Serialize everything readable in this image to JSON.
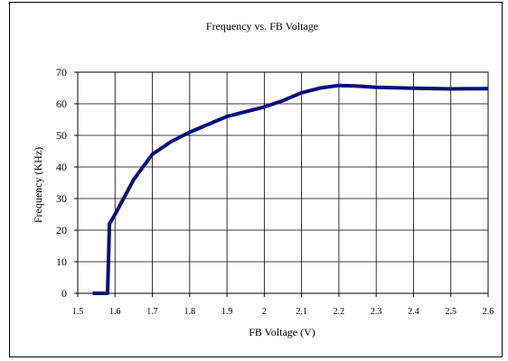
{
  "chart_data": {
    "type": "line",
    "title": "Frequency vs. FB Voltage",
    "xlabel": "FB Voltage (V)",
    "ylabel": "Frequency (KHz)",
    "xlim": [
      1.5,
      2.6
    ],
    "ylim": [
      0,
      70
    ],
    "x_ticks": [
      "1.5",
      "1.6",
      "1.7",
      "1.8",
      "1.9",
      "2",
      "2.1",
      "2.2",
      "2.3",
      "2.4",
      "2.5",
      "2.6"
    ],
    "y_ticks": [
      "0",
      "10",
      "20",
      "30",
      "40",
      "50",
      "60",
      "70"
    ],
    "grid": true,
    "legend": "none",
    "series": [
      {
        "color": "#0a0a7a",
        "points": [
          [
            1.54,
            0
          ],
          [
            1.58,
            0
          ],
          [
            1.585,
            22
          ],
          [
            1.6,
            25
          ],
          [
            1.65,
            36
          ],
          [
            1.7,
            44
          ],
          [
            1.75,
            48
          ],
          [
            1.8,
            51
          ],
          [
            1.9,
            56
          ],
          [
            2.0,
            59
          ],
          [
            2.05,
            61
          ],
          [
            2.1,
            63.5
          ],
          [
            2.15,
            65
          ],
          [
            2.2,
            65.8
          ],
          [
            2.25,
            65.6
          ],
          [
            2.3,
            65.2
          ],
          [
            2.4,
            64.9
          ],
          [
            2.5,
            64.7
          ],
          [
            2.6,
            64.8
          ]
        ]
      }
    ]
  }
}
